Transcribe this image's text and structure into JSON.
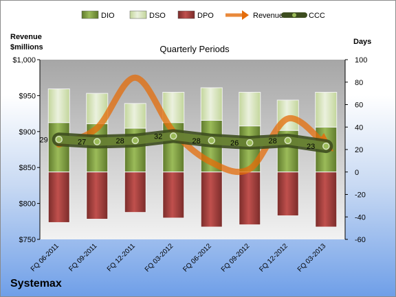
{
  "chart_data": {
    "type": "bar",
    "title": "Quarterly Periods",
    "company": "Systemax",
    "y_left_label_line1": "Revenue",
    "y_left_label_line2": "$millions",
    "y_right_label": "Days",
    "y_left_ticks": [
      "$1,000",
      "$950",
      "$900",
      "$850",
      "$800",
      "$750"
    ],
    "y_right_ticks": [
      "100",
      "80",
      "60",
      "40",
      "20",
      "0",
      "-20",
      "-40",
      "-60"
    ],
    "ylim_left": [
      750,
      1000
    ],
    "ylim_right": [
      -60,
      100
    ],
    "categories": [
      "FQ 06-2011",
      "FQ 09-2011",
      "FQ 12-2011",
      "FQ 03-2012",
      "FQ 06-2012",
      "FQ 09-2012",
      "FQ 12-2012",
      "FQ 03-2013"
    ],
    "legend": [
      "DIO",
      "DSO",
      "DPO",
      "Revenue",
      "CCC"
    ],
    "series": [
      {
        "name": "DIO",
        "axis": "right",
        "values": [
          44,
          43,
          39,
          44,
          46,
          41,
          37,
          40
        ]
      },
      {
        "name": "DSO",
        "axis": "right",
        "values": [
          30,
          27,
          22,
          27,
          29,
          30,
          27,
          31
        ]
      },
      {
        "name": "DPO",
        "axis": "right",
        "values": [
          -45,
          -42,
          -36,
          -41,
          -49,
          -47,
          -39,
          -49
        ]
      },
      {
        "name": "Revenue",
        "axis": "left",
        "values": [
          882,
          905,
          975,
          900,
          857,
          848,
          918,
          880
        ]
      },
      {
        "name": "CCC",
        "axis": "right",
        "values": [
          29,
          27,
          28,
          32,
          28,
          26,
          28,
          23
        ]
      }
    ],
    "colors": {
      "DIO": "#77933c",
      "DSO": "#d7e4bd",
      "DPO": "#953735",
      "Revenue": "#e46c0a",
      "CCC": "#4f6228"
    }
  }
}
